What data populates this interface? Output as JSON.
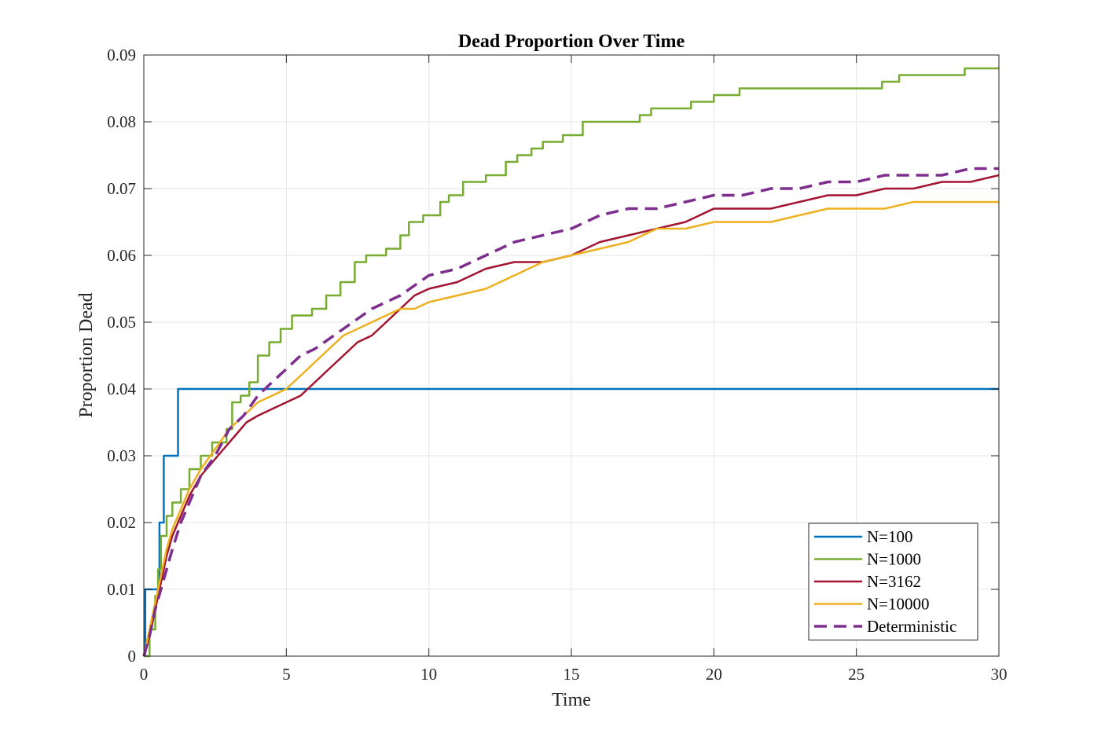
{
  "chart_data": {
    "type": "line",
    "title": "Dead Proportion Over Time",
    "xlabel": "Time",
    "ylabel": "Proportion Dead",
    "xlim": [
      0,
      30
    ],
    "ylim": [
      0,
      0.09
    ],
    "grid": true,
    "legend_position": "bottom-right",
    "x_ticks": [
      "0",
      "5",
      "10",
      "15",
      "20",
      "25",
      "30"
    ],
    "y_ticks": [
      "0",
      "0.01",
      "0.02",
      "0.03",
      "0.04",
      "0.05",
      "0.06",
      "0.07",
      "0.08",
      "0.09"
    ],
    "series": [
      {
        "name": "N=100",
        "color": "#0072BD",
        "style": "step",
        "points": [
          [
            0,
            0
          ],
          [
            0.05,
            0.01
          ],
          [
            0.55,
            0.02
          ],
          [
            0.7,
            0.03
          ],
          [
            1.2,
            0.04
          ],
          [
            30,
            0.04
          ]
        ]
      },
      {
        "name": "N=1000",
        "color": "#77AC30",
        "style": "step",
        "points": [
          [
            0,
            0
          ],
          [
            0.2,
            0.004
          ],
          [
            0.4,
            0.009
          ],
          [
            0.5,
            0.013
          ],
          [
            0.6,
            0.018
          ],
          [
            0.8,
            0.021
          ],
          [
            1.0,
            0.023
          ],
          [
            1.3,
            0.025
          ],
          [
            1.6,
            0.028
          ],
          [
            2.0,
            0.03
          ],
          [
            2.4,
            0.032
          ],
          [
            2.9,
            0.034
          ],
          [
            3.1,
            0.038
          ],
          [
            3.4,
            0.039
          ],
          [
            3.7,
            0.041
          ],
          [
            4.0,
            0.045
          ],
          [
            4.4,
            0.047
          ],
          [
            4.8,
            0.049
          ],
          [
            5.2,
            0.051
          ],
          [
            5.9,
            0.052
          ],
          [
            6.4,
            0.054
          ],
          [
            6.9,
            0.056
          ],
          [
            7.4,
            0.059
          ],
          [
            7.8,
            0.06
          ],
          [
            8.5,
            0.061
          ],
          [
            9.0,
            0.063
          ],
          [
            9.3,
            0.065
          ],
          [
            9.8,
            0.066
          ],
          [
            10.4,
            0.068
          ],
          [
            10.7,
            0.069
          ],
          [
            11.2,
            0.071
          ],
          [
            12.0,
            0.072
          ],
          [
            12.7,
            0.074
          ],
          [
            13.1,
            0.075
          ],
          [
            13.6,
            0.076
          ],
          [
            14.0,
            0.077
          ],
          [
            14.7,
            0.078
          ],
          [
            15.4,
            0.08
          ],
          [
            17.4,
            0.081
          ],
          [
            17.8,
            0.082
          ],
          [
            19.2,
            0.083
          ],
          [
            20.0,
            0.084
          ],
          [
            20.9,
            0.085
          ],
          [
            25.9,
            0.086
          ],
          [
            26.5,
            0.087
          ],
          [
            28.8,
            0.088
          ],
          [
            30,
            0.088
          ]
        ]
      },
      {
        "name": "N=3162",
        "color": "#A2142F",
        "style": "line",
        "points": [
          [
            0,
            0
          ],
          [
            0.2,
            0.003
          ],
          [
            0.4,
            0.007
          ],
          [
            0.6,
            0.011
          ],
          [
            0.8,
            0.015
          ],
          [
            1.0,
            0.018
          ],
          [
            1.3,
            0.021
          ],
          [
            1.6,
            0.024
          ],
          [
            2.0,
            0.027
          ],
          [
            2.4,
            0.029
          ],
          [
            2.8,
            0.031
          ],
          [
            3.2,
            0.033
          ],
          [
            3.6,
            0.035
          ],
          [
            4.0,
            0.036
          ],
          [
            4.5,
            0.037
          ],
          [
            5.0,
            0.038
          ],
          [
            5.5,
            0.039
          ],
          [
            6.0,
            0.041
          ],
          [
            6.5,
            0.043
          ],
          [
            7.0,
            0.045
          ],
          [
            7.5,
            0.047
          ],
          [
            8.0,
            0.048
          ],
          [
            8.5,
            0.05
          ],
          [
            9.0,
            0.052
          ],
          [
            9.5,
            0.054
          ],
          [
            10.0,
            0.055
          ],
          [
            11.0,
            0.056
          ],
          [
            12.0,
            0.058
          ],
          [
            13.0,
            0.059
          ],
          [
            14.0,
            0.059
          ],
          [
            15.0,
            0.06
          ],
          [
            16.0,
            0.062
          ],
          [
            17.0,
            0.063
          ],
          [
            18.0,
            0.064
          ],
          [
            19.0,
            0.065
          ],
          [
            20.0,
            0.067
          ],
          [
            22.0,
            0.067
          ],
          [
            23.0,
            0.068
          ],
          [
            24.0,
            0.069
          ],
          [
            25.0,
            0.069
          ],
          [
            26.0,
            0.07
          ],
          [
            27.0,
            0.07
          ],
          [
            28.0,
            0.071
          ],
          [
            29.0,
            0.071
          ],
          [
            30.0,
            0.072
          ]
        ]
      },
      {
        "name": "N=10000",
        "color": "#EDB120",
        "style": "line",
        "points": [
          [
            0,
            0
          ],
          [
            0.2,
            0.004
          ],
          [
            0.4,
            0.008
          ],
          [
            0.6,
            0.012
          ],
          [
            0.8,
            0.016
          ],
          [
            1.0,
            0.019
          ],
          [
            1.3,
            0.022
          ],
          [
            1.6,
            0.025
          ],
          [
            2.0,
            0.028
          ],
          [
            2.5,
            0.031
          ],
          [
            3.0,
            0.034
          ],
          [
            3.5,
            0.036
          ],
          [
            4.0,
            0.038
          ],
          [
            4.5,
            0.039
          ],
          [
            5.0,
            0.04
          ],
          [
            5.5,
            0.042
          ],
          [
            6.0,
            0.044
          ],
          [
            6.5,
            0.046
          ],
          [
            7.0,
            0.048
          ],
          [
            7.5,
            0.049
          ],
          [
            8.0,
            0.05
          ],
          [
            8.5,
            0.051
          ],
          [
            9.0,
            0.052
          ],
          [
            9.5,
            0.052
          ],
          [
            10.0,
            0.053
          ],
          [
            11.0,
            0.054
          ],
          [
            12.0,
            0.055
          ],
          [
            13.0,
            0.057
          ],
          [
            14.0,
            0.059
          ],
          [
            15.0,
            0.06
          ],
          [
            16.0,
            0.061
          ],
          [
            17.0,
            0.062
          ],
          [
            18.0,
            0.064
          ],
          [
            19.0,
            0.064
          ],
          [
            20.0,
            0.065
          ],
          [
            21.0,
            0.065
          ],
          [
            22.0,
            0.065
          ],
          [
            23.0,
            0.066
          ],
          [
            24.0,
            0.067
          ],
          [
            25.0,
            0.067
          ],
          [
            26.0,
            0.067
          ],
          [
            27.0,
            0.068
          ],
          [
            28.0,
            0.068
          ],
          [
            29.0,
            0.068
          ],
          [
            30.0,
            0.068
          ]
        ]
      },
      {
        "name": "Deterministic",
        "color": "#7E2F8E",
        "style": "dashed",
        "points": [
          [
            0,
            0
          ],
          [
            0.2,
            0.003
          ],
          [
            0.4,
            0.007
          ],
          [
            0.6,
            0.01
          ],
          [
            0.8,
            0.013
          ],
          [
            1.0,
            0.016
          ],
          [
            1.3,
            0.02
          ],
          [
            1.6,
            0.023
          ],
          [
            2.0,
            0.027
          ],
          [
            2.5,
            0.03
          ],
          [
            3.0,
            0.034
          ],
          [
            3.5,
            0.036
          ],
          [
            4.0,
            0.039
          ],
          [
            4.5,
            0.041
          ],
          [
            5.0,
            0.043
          ],
          [
            5.5,
            0.045
          ],
          [
            6.0,
            0.046
          ],
          [
            7.0,
            0.049
          ],
          [
            8.0,
            0.052
          ],
          [
            9.0,
            0.054
          ],
          [
            10.0,
            0.057
          ],
          [
            11.0,
            0.058
          ],
          [
            12.0,
            0.06
          ],
          [
            13.0,
            0.062
          ],
          [
            14.0,
            0.063
          ],
          [
            15.0,
            0.064
          ],
          [
            16.0,
            0.066
          ],
          [
            17.0,
            0.067
          ],
          [
            18.0,
            0.067
          ],
          [
            19.0,
            0.068
          ],
          [
            20.0,
            0.069
          ],
          [
            21.0,
            0.069
          ],
          [
            22.0,
            0.07
          ],
          [
            23.0,
            0.07
          ],
          [
            24.0,
            0.071
          ],
          [
            25.0,
            0.071
          ],
          [
            26.0,
            0.072
          ],
          [
            27.0,
            0.072
          ],
          [
            28.0,
            0.072
          ],
          [
            29.0,
            0.073
          ],
          [
            30.0,
            0.073
          ]
        ]
      }
    ]
  }
}
